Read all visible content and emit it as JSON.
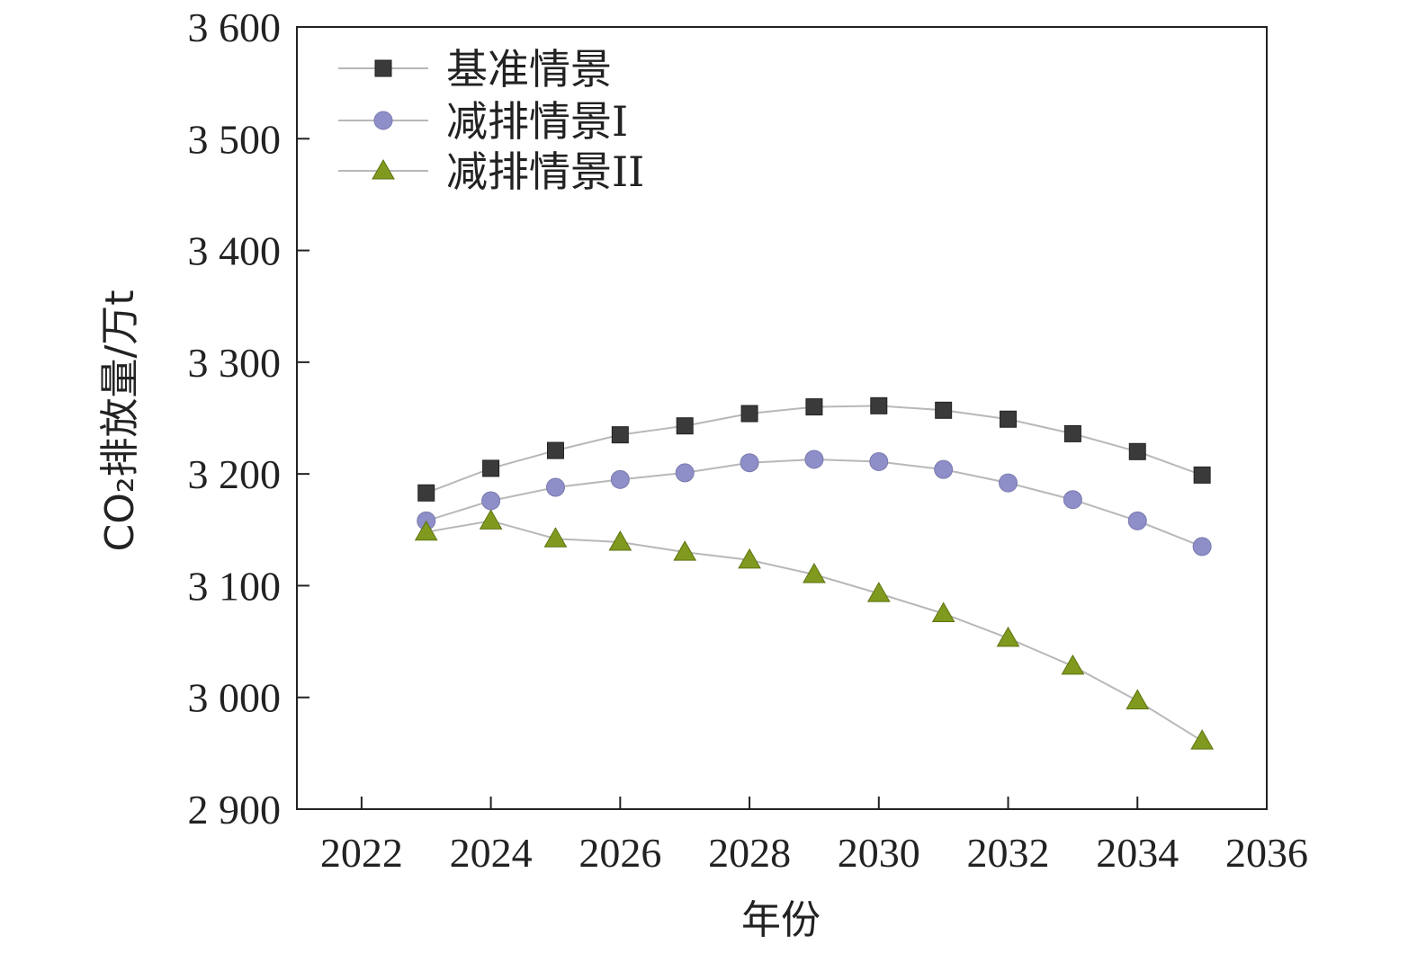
{
  "chart_data": {
    "type": "line",
    "xlabel": "年份",
    "ylabel": "CO₂排放量/万t",
    "xlim": [
      2021,
      2036
    ],
    "ylim": [
      2900,
      3600
    ],
    "x_ticks": [
      2022,
      2024,
      2026,
      2028,
      2030,
      2032,
      2034,
      2036
    ],
    "x_tick_labels": [
      "2022",
      "2024",
      "2026",
      "2028",
      "2030",
      "2032",
      "2034",
      "2036"
    ],
    "y_ticks": [
      2900,
      3000,
      3100,
      3200,
      3300,
      3400,
      3500,
      3600
    ],
    "y_tick_labels": [
      "2 900",
      "3 000",
      "3 100",
      "3 200",
      "3 300",
      "3 400",
      "3 500",
      "3 600"
    ],
    "grid": false,
    "legend_position": "top-left",
    "x": [
      2023,
      2024,
      2025,
      2026,
      2027,
      2028,
      2029,
      2030,
      2031,
      2032,
      2033,
      2034,
      2035
    ],
    "series": [
      {
        "name": "基准情景",
        "marker": "square",
        "color": "#3a3a3a",
        "values": [
          3183,
          3205,
          3221,
          3235,
          3243,
          3254,
          3260,
          3261,
          3257,
          3249,
          3236,
          3220,
          3199
        ]
      },
      {
        "name": "减排情景I",
        "marker": "circle",
        "color": "#8e8ec8",
        "values": [
          3158,
          3176,
          3188,
          3195,
          3201,
          3210,
          3213,
          3211,
          3204,
          3192,
          3177,
          3158,
          3135
        ]
      },
      {
        "name": "减排情景II",
        "marker": "triangle",
        "color": "#7f9a1e",
        "values": [
          3148,
          3158,
          3142,
          3139,
          3130,
          3123,
          3110,
          3093,
          3075,
          3053,
          3028,
          2997,
          2961
        ]
      }
    ],
    "line_color": "#b8b8b8"
  }
}
